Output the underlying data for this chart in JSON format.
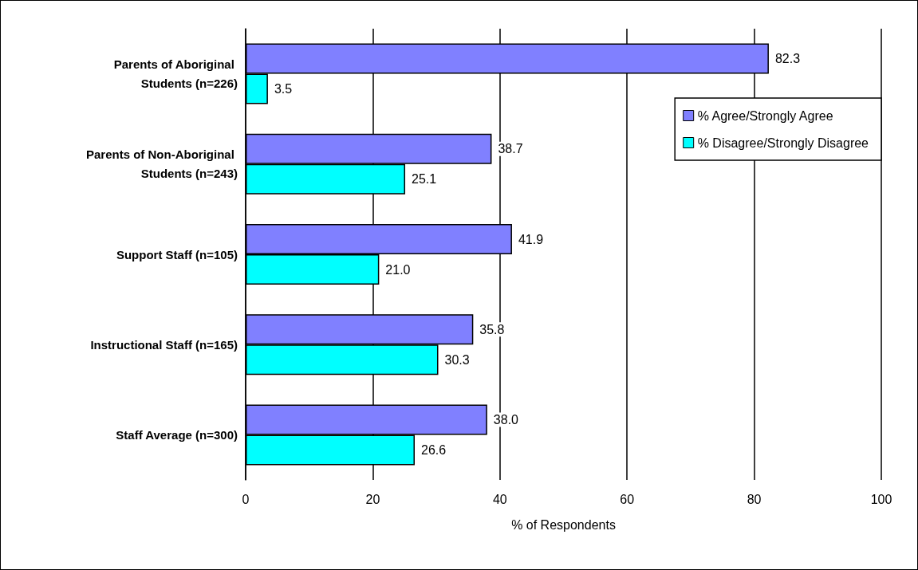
{
  "chart_data": {
    "type": "bar",
    "orientation": "horizontal",
    "categories": [
      "Parents of Aboriginal Students (n=226)",
      "Parents of Non-Aboriginal Students (n=243)",
      "Support Staff (n=105)",
      "Instructional Staff (n=165)",
      "Staff Average (n=300)"
    ],
    "series": [
      {
        "name": "% Agree/Strongly Agree",
        "color": "#8080ff",
        "values": [
          82.3,
          38.7,
          41.9,
          35.8,
          38.0
        ],
        "value_labels": [
          "82.3",
          "38.7",
          "41.9",
          "35.8",
          "38.0"
        ]
      },
      {
        "name": "% Disagree/Strongly Disagree",
        "color": "#00ffff",
        "values": [
          3.5,
          25.1,
          21.0,
          30.3,
          26.6
        ],
        "value_labels": [
          "3.5",
          "25.1",
          "21.0",
          "30.3",
          "26.6"
        ]
      }
    ],
    "xlabel": "% of Respondents",
    "xlim": [
      0,
      100
    ],
    "xticks": [
      0,
      20,
      40,
      60,
      80,
      100
    ],
    "grid": "x",
    "legend": "top right"
  }
}
